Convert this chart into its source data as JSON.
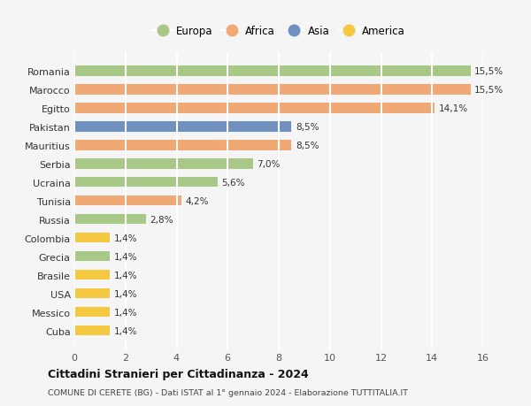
{
  "categories": [
    "Cuba",
    "Messico",
    "USA",
    "Brasile",
    "Grecia",
    "Colombia",
    "Russia",
    "Tunisia",
    "Ucraina",
    "Serbia",
    "Mauritius",
    "Pakistan",
    "Egitto",
    "Marocco",
    "Romania"
  ],
  "values": [
    1.4,
    1.4,
    1.4,
    1.4,
    1.4,
    1.4,
    2.8,
    4.2,
    5.6,
    7.0,
    8.5,
    8.5,
    14.1,
    15.5,
    15.5
  ],
  "colors": [
    "#f5c842",
    "#f5c842",
    "#f5c842",
    "#f5c842",
    "#a8c888",
    "#f5c842",
    "#a8c888",
    "#f0a875",
    "#a8c888",
    "#a8c888",
    "#f0a875",
    "#7090c0",
    "#f0a875",
    "#f0a875",
    "#a8c888"
  ],
  "labels": [
    "1,4%",
    "1,4%",
    "1,4%",
    "1,4%",
    "1,4%",
    "1,4%",
    "2,8%",
    "4,2%",
    "5,6%",
    "7,0%",
    "8,5%",
    "8,5%",
    "14,1%",
    "15,5%",
    "15,5%"
  ],
  "legend": [
    {
      "label": "Europa",
      "color": "#a8c888"
    },
    {
      "label": "Africa",
      "color": "#f0a875"
    },
    {
      "label": "Asia",
      "color": "#7090c0"
    },
    {
      "label": "America",
      "color": "#f5c842"
    }
  ],
  "xlim": [
    0,
    16
  ],
  "xticks": [
    0,
    2,
    4,
    6,
    8,
    10,
    12,
    14,
    16
  ],
  "title": "Cittadini Stranieri per Cittadinanza - 2024",
  "subtitle": "COMUNE DI CERETE (BG) - Dati ISTAT al 1° gennaio 2024 - Elaborazione TUTTITALIA.IT",
  "background_color": "#f5f5f5",
  "grid_color": "#ffffff",
  "bar_height": 0.55
}
